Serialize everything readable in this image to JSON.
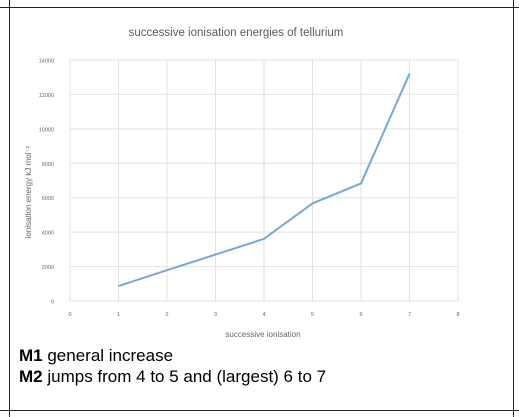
{
  "chart_data": {
    "type": "line",
    "title": "successive ionisation energies of tellurium",
    "xlabel": "successive ionisation",
    "ylabel": "ionisation energy kJ mol⁻¹",
    "x_ticks": [
      "0",
      "1",
      "2",
      "3",
      "4",
      "5",
      "6",
      "7",
      "8"
    ],
    "y_ticks": [
      "0",
      "2000",
      "4000",
      "6000",
      "8000",
      "10000",
      "12000",
      "14000"
    ],
    "xlim": [
      0,
      8
    ],
    "ylim": [
      0,
      14000
    ],
    "grid": true,
    "series": [
      {
        "x": [
          1,
          2,
          3,
          4,
          5,
          6,
          7
        ],
        "values": [
          870,
          1790,
          2700,
          3610,
          5670,
          6830,
          13200
        ],
        "color": "#7aa6d6"
      }
    ]
  },
  "marks": [
    {
      "label": "M1",
      "text": " general increase"
    },
    {
      "label": "M2",
      "text": " jumps from 4 to 5 and (largest) 6 to 7"
    }
  ]
}
